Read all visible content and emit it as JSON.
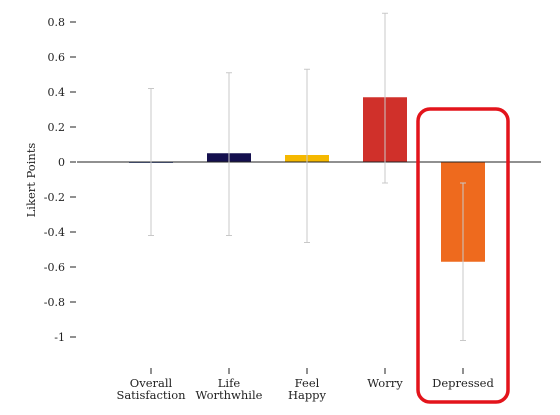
{
  "chart_data": {
    "type": "bar",
    "title": "",
    "xlabel": "",
    "ylabel": "Likert Points",
    "ylim": [
      -1.05,
      0.88
    ],
    "yticks": [
      0.8,
      0.6,
      0.4,
      0.2,
      0,
      -0.2,
      -0.4,
      -0.6,
      -0.8,
      -1
    ],
    "ytick_labels": [
      "0.8",
      "0.6",
      "0.4",
      "0.2",
      "0",
      "-0.2",
      "-0.4",
      "-0.6",
      "-0.8",
      "-1"
    ],
    "grid": false,
    "categories": [
      {
        "lines": [
          "Overall",
          "Satisfaction"
        ]
      },
      {
        "lines": [
          "Life",
          "Worthwhile"
        ]
      },
      {
        "lines": [
          "Feel",
          "Happy"
        ]
      },
      {
        "lines": [
          "Worry"
        ]
      },
      {
        "lines": [
          "Depressed"
        ]
      }
    ],
    "values": [
      0.0,
      0.05,
      0.04,
      0.37,
      -0.57
    ],
    "error_low": [
      -0.42,
      -0.42,
      -0.46,
      -0.12,
      -1.02
    ],
    "error_high": [
      0.42,
      0.51,
      0.53,
      0.85,
      -0.12
    ],
    "colors": [
      "#5b6fa8",
      "#14104e",
      "#f5b800",
      "#d0302a",
      "#ee6a1e"
    ],
    "errorbar_color": "#c8c8c8",
    "highlight": {
      "category_index": 4,
      "color": "#e3141b"
    }
  }
}
